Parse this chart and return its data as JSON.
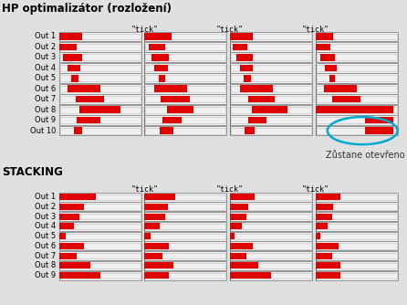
{
  "title1": "HP optimalizátor (rozložení)",
  "title2": "STACKING",
  "tick_label": "\"tick\"",
  "annotation": "Zůstane otevřeno",
  "bg_color": "#e0e0e0",
  "hp_outputs": 10,
  "stack_outputs": 9,
  "hp_red_bars": [
    [
      [
        0.0,
        0.28
      ],
      [
        0.0,
        0.33
      ],
      [
        0.0,
        0.28
      ],
      [
        0.0,
        0.22
      ]
    ],
    [
      [
        0.0,
        0.22
      ],
      [
        0.05,
        0.25
      ],
      [
        0.03,
        0.21
      ],
      [
        0.0,
        0.18
      ]
    ],
    [
      [
        0.05,
        0.28
      ],
      [
        0.08,
        0.3
      ],
      [
        0.08,
        0.28
      ],
      [
        0.06,
        0.24
      ]
    ],
    [
      [
        0.1,
        0.26
      ],
      [
        0.12,
        0.28
      ],
      [
        0.12,
        0.28
      ],
      [
        0.12,
        0.26
      ]
    ],
    [
      [
        0.15,
        0.24
      ],
      [
        0.17,
        0.25
      ],
      [
        0.17,
        0.26
      ],
      [
        0.17,
        0.24
      ]
    ],
    [
      [
        0.1,
        0.5
      ],
      [
        0.12,
        0.52
      ],
      [
        0.12,
        0.52
      ],
      [
        0.1,
        0.5
      ]
    ],
    [
      [
        0.2,
        0.55
      ],
      [
        0.2,
        0.55
      ],
      [
        0.22,
        0.55
      ],
      [
        0.2,
        0.55
      ]
    ],
    [
      [
        0.25,
        0.75
      ],
      [
        0.27,
        0.6
      ],
      [
        0.27,
        0.7
      ],
      [
        0.0,
        0.95
      ]
    ],
    [
      [
        0.22,
        0.5
      ],
      [
        0.22,
        0.45
      ],
      [
        0.22,
        0.45
      ],
      [
        0.6,
        0.95
      ]
    ],
    [
      [
        0.18,
        0.28
      ],
      [
        0.18,
        0.35
      ],
      [
        0.18,
        0.3
      ],
      [
        0.6,
        0.95
      ]
    ]
  ],
  "stack_red_bars": [
    [
      [
        0.0,
        0.45
      ],
      [
        0.0,
        0.38
      ],
      [
        0.0,
        0.3
      ],
      [
        0.0,
        0.3
      ]
    ],
    [
      [
        0.0,
        0.3
      ],
      [
        0.0,
        0.28
      ],
      [
        0.0,
        0.22
      ],
      [
        0.0,
        0.22
      ]
    ],
    [
      [
        0.0,
        0.25
      ],
      [
        0.0,
        0.25
      ],
      [
        0.0,
        0.2
      ],
      [
        0.0,
        0.2
      ]
    ],
    [
      [
        0.0,
        0.18
      ],
      [
        0.0,
        0.18
      ],
      [
        0.0,
        0.15
      ],
      [
        0.0,
        0.15
      ]
    ],
    [
      [
        0.0,
        0.08
      ],
      [
        0.0,
        0.07
      ],
      [
        0.0,
        0.06
      ],
      [
        0.0,
        0.06
      ]
    ],
    [
      [
        0.0,
        0.3
      ],
      [
        0.0,
        0.3
      ],
      [
        0.0,
        0.28
      ],
      [
        0.0,
        0.28
      ]
    ],
    [
      [
        0.0,
        0.22
      ],
      [
        0.0,
        0.22
      ],
      [
        0.0,
        0.2
      ],
      [
        0.0,
        0.2
      ]
    ],
    [
      [
        0.0,
        0.38
      ],
      [
        0.0,
        0.35
      ],
      [
        0.0,
        0.35
      ],
      [
        0.0,
        0.3
      ]
    ],
    [
      [
        0.0,
        0.5
      ],
      [
        0.0,
        0.3
      ],
      [
        0.0,
        0.5
      ],
      [
        0.0,
        0.3
      ]
    ]
  ]
}
